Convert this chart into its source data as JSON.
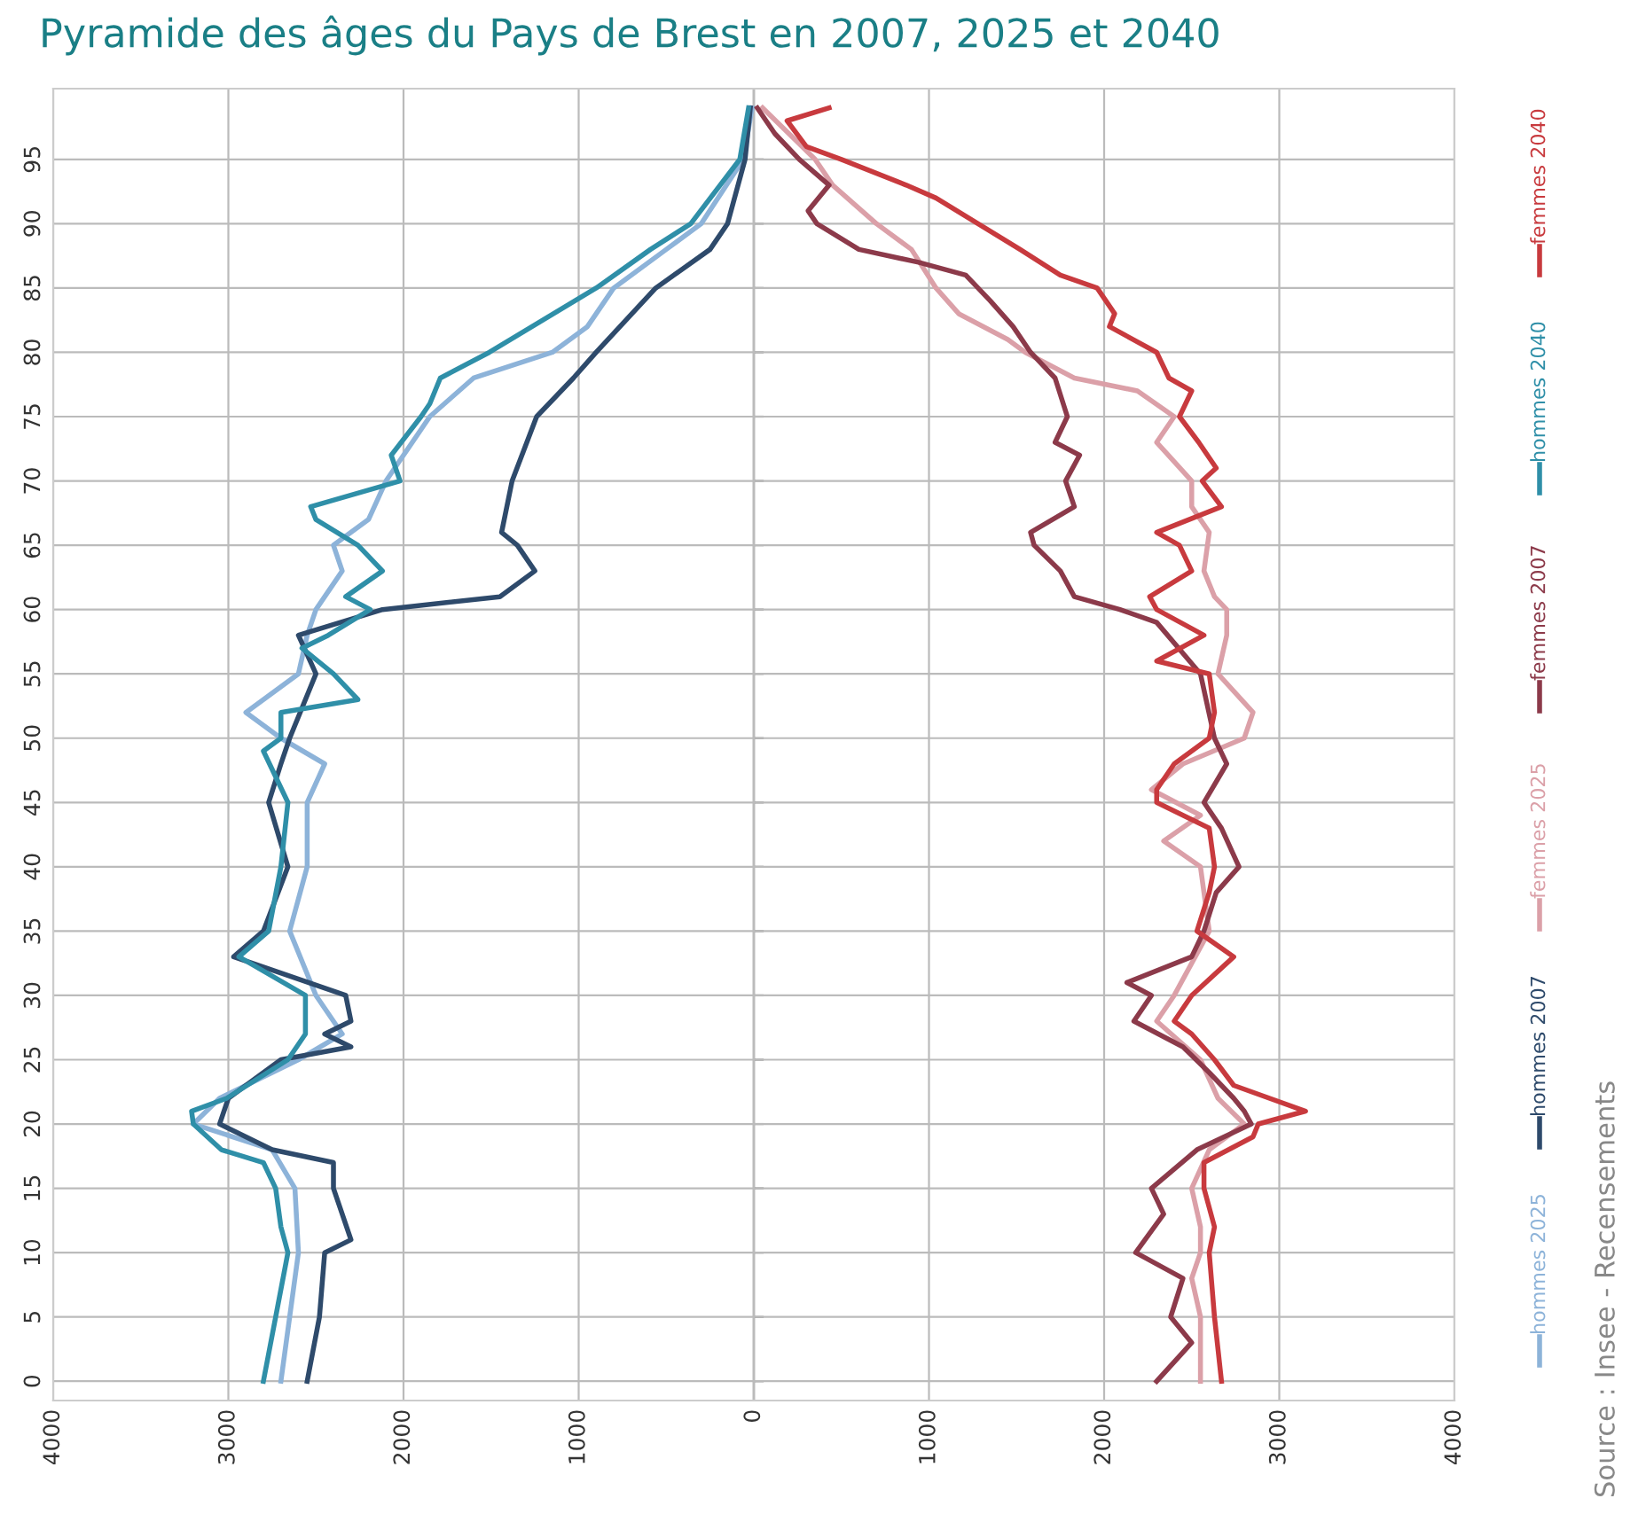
{
  "chart_data": {
    "type": "line",
    "orientation": "horizontal",
    "title": "Pyramide des âges du Pays de Brest en 2007, 2025 et 2040",
    "annotations": [
      "Source : Insee - Recensements"
    ],
    "xlim": [
      -4000,
      4000
    ],
    "xticks": [
      {
        "value": -4000,
        "label": "4000"
      },
      {
        "value": -3000,
        "label": "3000"
      },
      {
        "value": -2000,
        "label": "2000"
      },
      {
        "value": -1000,
        "label": "1000"
      },
      0,
      1000,
      2000,
      3000,
      4000
    ],
    "ylim": [
      -1.5,
      100.5
    ],
    "yticks": [
      0,
      5,
      10,
      15,
      20,
      25,
      30,
      35,
      40,
      45,
      50,
      55,
      60,
      65,
      70,
      75,
      80,
      85,
      90,
      95
    ],
    "grid": true,
    "legend": "right",
    "line_style": "solid",
    "marker": "none",
    "series": [
      {
        "name": "hommes 2025",
        "color": "#8db3d9",
        "x": [
          0,
          5,
          10,
          15,
          18,
          20,
          22,
          25,
          27,
          30,
          35,
          40,
          45,
          48,
          50,
          52,
          55,
          58,
          60,
          63,
          65,
          67,
          70,
          72,
          75,
          78,
          80,
          82,
          85,
          88,
          90,
          95,
          99
        ],
        "values": [
          -2700,
          -2650,
          -2600,
          -2620,
          -2750,
          -3200,
          -3050,
          -2600,
          -2350,
          -2500,
          -2650,
          -2550,
          -2550,
          -2450,
          -2700,
          -2900,
          -2600,
          -2550,
          -2500,
          -2350,
          -2400,
          -2200,
          -2100,
          -2000,
          -1850,
          -1600,
          -1150,
          -950,
          -800,
          -500,
          -300,
          -60,
          -10
        ]
      },
      {
        "name": "hommes 2007",
        "color": "#2e4a6b",
        "x": [
          0,
          5,
          10,
          11,
          15,
          17,
          18,
          20,
          22,
          25,
          26,
          27,
          28,
          30,
          33,
          35,
          40,
          45,
          48,
          50,
          55,
          58,
          60,
          61,
          63,
          65,
          66,
          70,
          75,
          78,
          80,
          85,
          88,
          90,
          95,
          99
        ],
        "values": [
          -2550,
          -2480,
          -2450,
          -2300,
          -2400,
          -2400,
          -2750,
          -3050,
          -3000,
          -2700,
          -2300,
          -2450,
          -2300,
          -2330,
          -2970,
          -2800,
          -2660,
          -2770,
          -2700,
          -2650,
          -2500,
          -2600,
          -2120,
          -1450,
          -1250,
          -1350,
          -1440,
          -1380,
          -1240,
          -1030,
          -900,
          -560,
          -250,
          -150,
          -50,
          -20
        ]
      },
      {
        "name": "femmes 2025",
        "color": "#dba0a8",
        "x": [
          0,
          5,
          8,
          10,
          12,
          15,
          18,
          20,
          22,
          25,
          28,
          30,
          35,
          40,
          42,
          44,
          46,
          48,
          50,
          52,
          55,
          58,
          60,
          61,
          63,
          66,
          68,
          70,
          73,
          75,
          77,
          78,
          80,
          81,
          83,
          85,
          88,
          90,
          93,
          95,
          99
        ],
        "values": [
          2550,
          2550,
          2500,
          2550,
          2550,
          2500,
          2600,
          2800,
          2650,
          2550,
          2300,
          2400,
          2600,
          2550,
          2340,
          2550,
          2270,
          2450,
          2800,
          2850,
          2650,
          2700,
          2700,
          2630,
          2570,
          2600,
          2500,
          2500,
          2300,
          2400,
          2190,
          1830,
          1550,
          1450,
          1170,
          1040,
          900,
          700,
          450,
          350,
          50
        ]
      },
      {
        "name": "femmes 2007",
        "color": "#8c3a4a",
        "x": [
          0,
          3,
          5,
          8,
          10,
          13,
          15,
          18,
          20,
          21,
          22,
          24,
          26,
          28,
          30,
          31,
          33,
          35,
          38,
          40,
          43,
          45,
          48,
          50,
          55,
          59,
          60,
          61,
          63,
          65,
          66,
          68,
          70,
          72,
          73,
          75,
          78,
          80,
          82,
          84,
          86,
          87,
          88,
          90,
          91,
          93,
          95,
          97,
          99
        ],
        "values": [
          2300,
          2500,
          2380,
          2450,
          2180,
          2340,
          2270,
          2530,
          2840,
          2800,
          2740,
          2600,
          2450,
          2170,
          2270,
          2130,
          2500,
          2570,
          2640,
          2770,
          2670,
          2570,
          2700,
          2630,
          2550,
          2300,
          2090,
          1830,
          1750,
          1600,
          1580,
          1830,
          1780,
          1860,
          1720,
          1790,
          1720,
          1580,
          1480,
          1350,
          1210,
          940,
          600,
          360,
          310,
          430,
          260,
          120,
          20
        ]
      },
      {
        "name": "hommes 2040",
        "color": "#2f8fa8",
        "x": [
          0,
          5,
          10,
          12,
          15,
          17,
          18,
          20,
          21,
          22,
          25,
          27,
          30,
          33,
          35,
          40,
          45,
          49,
          50,
          52,
          53,
          55,
          57,
          58,
          60,
          61,
          63,
          65,
          67,
          68,
          70,
          72,
          75,
          76,
          78,
          80,
          85,
          88,
          90,
          95,
          99
        ],
        "values": [
          -2800,
          -2730,
          -2660,
          -2700,
          -2730,
          -2800,
          -3040,
          -3200,
          -3210,
          -3010,
          -2660,
          -2560,
          -2560,
          -2940,
          -2770,
          -2700,
          -2660,
          -2800,
          -2700,
          -2700,
          -2260,
          -2400,
          -2580,
          -2430,
          -2190,
          -2330,
          -2120,
          -2260,
          -2500,
          -2530,
          -2020,
          -2070,
          -1900,
          -1850,
          -1790,
          -1510,
          -900,
          -590,
          -360,
          -80,
          -30
        ]
      },
      {
        "name": "femmes 2040",
        "color": "#c83a3e",
        "x": [
          0,
          5,
          10,
          12,
          15,
          17,
          19,
          20,
          21,
          23,
          25,
          27,
          28,
          30,
          33,
          35,
          38,
          40,
          43,
          45,
          46,
          48,
          50,
          52,
          55,
          56,
          58,
          60,
          61,
          63,
          65,
          66,
          68,
          70,
          71,
          73,
          75,
          77,
          78,
          80,
          82,
          83,
          85,
          86,
          88,
          90,
          92,
          93,
          95,
          96,
          98,
          99
        ],
        "values": [
          2670,
          2630,
          2600,
          2630,
          2570,
          2570,
          2850,
          2880,
          3150,
          2740,
          2630,
          2500,
          2400,
          2500,
          2740,
          2530,
          2600,
          2630,
          2600,
          2300,
          2300,
          2400,
          2600,
          2630,
          2600,
          2300,
          2570,
          2300,
          2260,
          2500,
          2430,
          2300,
          2670,
          2560,
          2640,
          2540,
          2430,
          2500,
          2370,
          2300,
          2030,
          2060,
          1960,
          1750,
          1520,
          1280,
          1040,
          870,
          500,
          300,
          190,
          430
        ]
      }
    ]
  }
}
